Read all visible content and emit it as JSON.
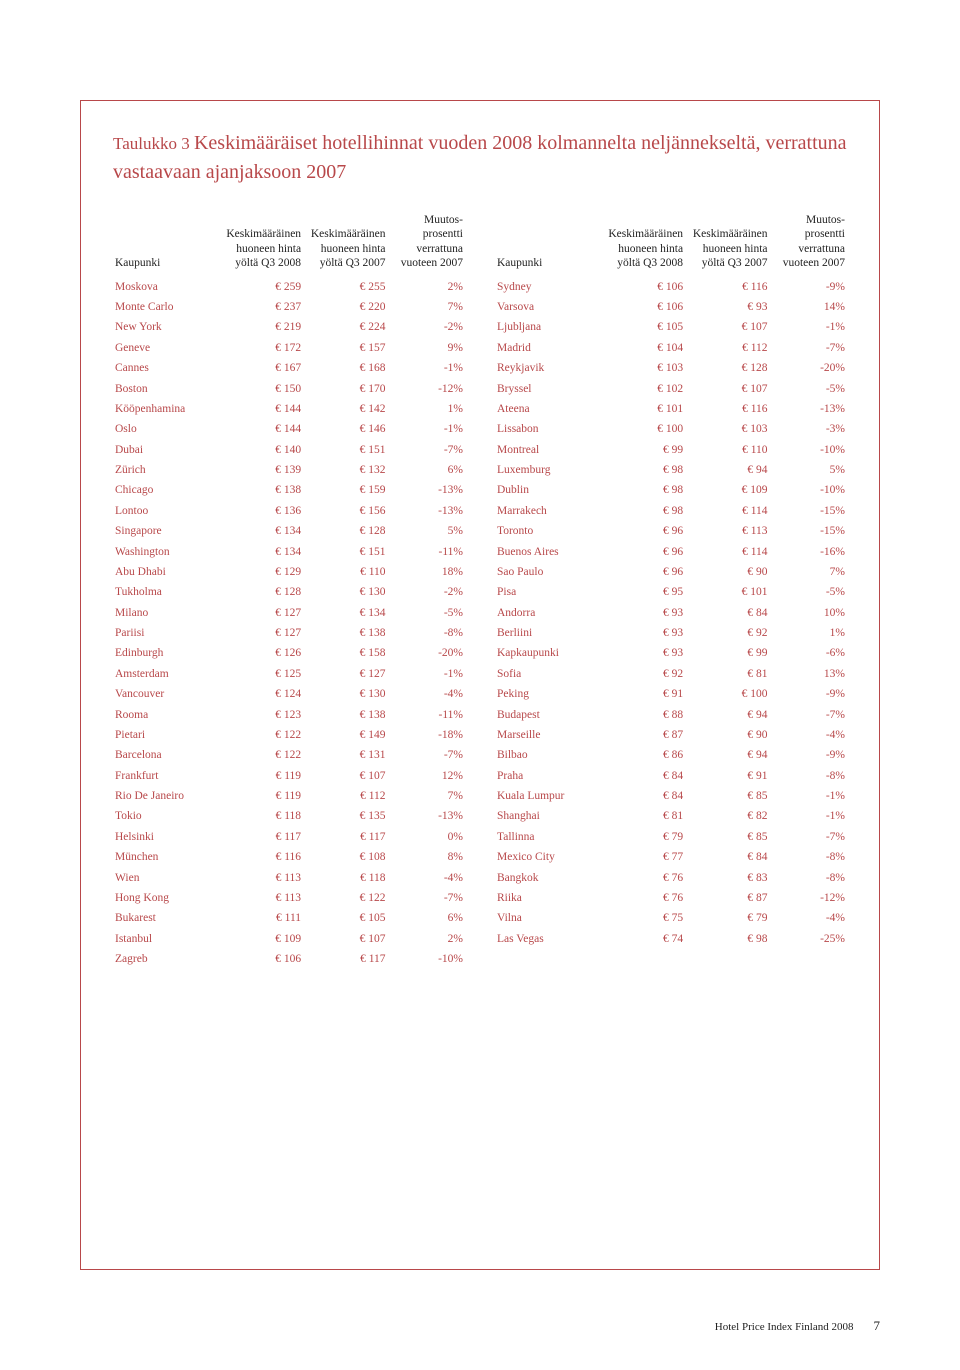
{
  "title_pre": "Taulukko 3 ",
  "title_strong": "Keskimääräiset hotellihinnat vuoden 2008 kolmannelta neljännekseltä, verrattuna vastaavaan ajanjaksoon 2007",
  "colors": {
    "accent": "#b8484a",
    "text": "#222222",
    "bg": "#ffffff"
  },
  "headers": {
    "city": "Kaupunki",
    "q3_2008": "Keskimääräinen huoneen hinta yöltä Q3 2008",
    "q3_2007": "Keskimääräinen huoneen hinta yöltä Q3 2007",
    "change": "Muutos-prosentti verrattuna vuoteen 2007"
  },
  "hdr_lines": {
    "c1": [
      "",
      "",
      "",
      "Kaupunki"
    ],
    "c2": [
      "",
      "Keskimääräinen",
      "huoneen hinta",
      "yöltä Q3 2008"
    ],
    "c3": [
      "",
      "Keskimääräinen",
      "huoneen hinta",
      "yöltä Q3 2007"
    ],
    "c4": [
      "Muutos-",
      "prosentti",
      "verrattuna",
      "vuoteen 2007"
    ]
  },
  "left_rows": [
    [
      "Moskova",
      "€ 259",
      "€ 255",
      "2%"
    ],
    [
      "Monte Carlo",
      "€ 237",
      "€ 220",
      "7%"
    ],
    [
      "New York",
      "€ 219",
      "€ 224",
      "-2%"
    ],
    [
      "Geneve",
      "€ 172",
      "€ 157",
      "9%"
    ],
    [
      "Cannes",
      "€ 167",
      "€ 168",
      "-1%"
    ],
    [
      "Boston",
      "€ 150",
      "€ 170",
      "-12%"
    ],
    [
      "Kööpenhamina",
      "€ 144",
      "€ 142",
      "1%"
    ],
    [
      "Oslo",
      "€ 144",
      "€ 146",
      "-1%"
    ],
    [
      "Dubai",
      "€ 140",
      "€ 151",
      "-7%"
    ],
    [
      "Zürich",
      "€ 139",
      "€ 132",
      "6%"
    ],
    [
      "Chicago",
      "€ 138",
      "€ 159",
      "-13%"
    ],
    [
      "Lontoo",
      "€ 136",
      "€ 156",
      "-13%"
    ],
    [
      "Singapore",
      "€ 134",
      "€ 128",
      "5%"
    ],
    [
      "Washington",
      "€ 134",
      "€ 151",
      "-11%"
    ],
    [
      "Abu Dhabi",
      "€ 129",
      "€ 110",
      "18%"
    ],
    [
      "Tukholma",
      "€ 128",
      "€ 130",
      "-2%"
    ],
    [
      "Milano",
      "€ 127",
      "€ 134",
      "-5%"
    ],
    [
      "Pariisi",
      "€ 127",
      "€ 138",
      "-8%"
    ],
    [
      "Edinburgh",
      "€ 126",
      "€ 158",
      "-20%"
    ],
    [
      "Amsterdam",
      "€ 125",
      "€ 127",
      "-1%"
    ],
    [
      "Vancouver",
      "€ 124",
      "€ 130",
      "-4%"
    ],
    [
      "Rooma",
      "€ 123",
      "€ 138",
      "-11%"
    ],
    [
      "Pietari",
      "€ 122",
      "€ 149",
      "-18%"
    ],
    [
      "Barcelona",
      "€ 122",
      "€ 131",
      "-7%"
    ],
    [
      "Frankfurt",
      "€ 119",
      "€ 107",
      "12%"
    ],
    [
      "Rio De Janeiro",
      "€ 119",
      "€ 112",
      "7%"
    ],
    [
      "Tokio",
      "€ 118",
      "€ 135",
      "-13%"
    ],
    [
      "Helsinki",
      "€ 117",
      "€ 117",
      "0%"
    ],
    [
      "München",
      "€ 116",
      "€ 108",
      "8%"
    ],
    [
      "Wien",
      "€ 113",
      "€ 118",
      "-4%"
    ],
    [
      "Hong Kong",
      "€ 113",
      "€ 122",
      "-7%"
    ],
    [
      "Bukarest",
      "€ 111",
      "€ 105",
      "6%"
    ],
    [
      "Istanbul",
      "€ 109",
      "€ 107",
      "2%"
    ],
    [
      "Zagreb",
      "€ 106",
      "€ 117",
      "-10%"
    ]
  ],
  "right_rows": [
    [
      "Sydney",
      "€ 106",
      "€ 116",
      "-9%"
    ],
    [
      "Varsova",
      "€ 106",
      "€ 93",
      "14%"
    ],
    [
      "Ljubljana",
      "€ 105",
      "€ 107",
      "-1%"
    ],
    [
      "Madrid",
      "€ 104",
      "€ 112",
      "-7%"
    ],
    [
      "Reykjavik",
      "€ 103",
      "€ 128",
      "-20%"
    ],
    [
      "Bryssel",
      "€ 102",
      "€ 107",
      "-5%"
    ],
    [
      "Ateena",
      "€ 101",
      "€ 116",
      "-13%"
    ],
    [
      "Lissabon",
      "€ 100",
      "€ 103",
      "-3%"
    ],
    [
      "Montreal",
      "€ 99",
      "€ 110",
      "-10%"
    ],
    [
      "Luxemburg",
      "€ 98",
      "€ 94",
      "5%"
    ],
    [
      "Dublin",
      "€ 98",
      "€ 109",
      "-10%"
    ],
    [
      "Marrakech",
      "€ 98",
      "€ 114",
      "-15%"
    ],
    [
      "Toronto",
      "€ 96",
      "€ 113",
      "-15%"
    ],
    [
      "Buenos Aires",
      "€ 96",
      "€ 114",
      "-16%"
    ],
    [
      "Sao Paulo",
      "€ 96",
      "€ 90",
      "7%"
    ],
    [
      "Pisa",
      "€ 95",
      "€ 101",
      "-5%"
    ],
    [
      "Andorra",
      "€ 93",
      "€ 84",
      "10%"
    ],
    [
      "Berliini",
      "€ 93",
      "€ 92",
      "1%"
    ],
    [
      "Kapkaupunki",
      "€ 93",
      "€ 99",
      "-6%"
    ],
    [
      "Sofia",
      "€ 92",
      "€ 81",
      "13%"
    ],
    [
      "Peking",
      "€ 91",
      "€ 100",
      "-9%"
    ],
    [
      "Budapest",
      "€ 88",
      "€ 94",
      "-7%"
    ],
    [
      "Marseille",
      "€ 87",
      "€ 90",
      "-4%"
    ],
    [
      "Bilbao",
      "€ 86",
      "€ 94",
      "-9%"
    ],
    [
      "Praha",
      "€ 84",
      "€ 91",
      "-8%"
    ],
    [
      "Kuala Lumpur",
      "€ 84",
      "€ 85",
      "-1%"
    ],
    [
      "Shanghai",
      "€ 81",
      "€ 82",
      "-1%"
    ],
    [
      "Tallinna",
      "€ 79",
      "€ 85",
      "-7%"
    ],
    [
      "Mexico City",
      "€ 77",
      "€ 84",
      "-8%"
    ],
    [
      "Bangkok",
      "€ 76",
      "€ 83",
      "-8%"
    ],
    [
      "Riika",
      "€ 76",
      "€ 87",
      "-12%"
    ],
    [
      "Vilna",
      "€ 75",
      "€ 79",
      "-4%"
    ],
    [
      "Las Vegas",
      "€ 74",
      "€ 98",
      "-25%"
    ]
  ],
  "footer": {
    "text": "Hotel Price Index Finland 2008",
    "page": "7"
  }
}
